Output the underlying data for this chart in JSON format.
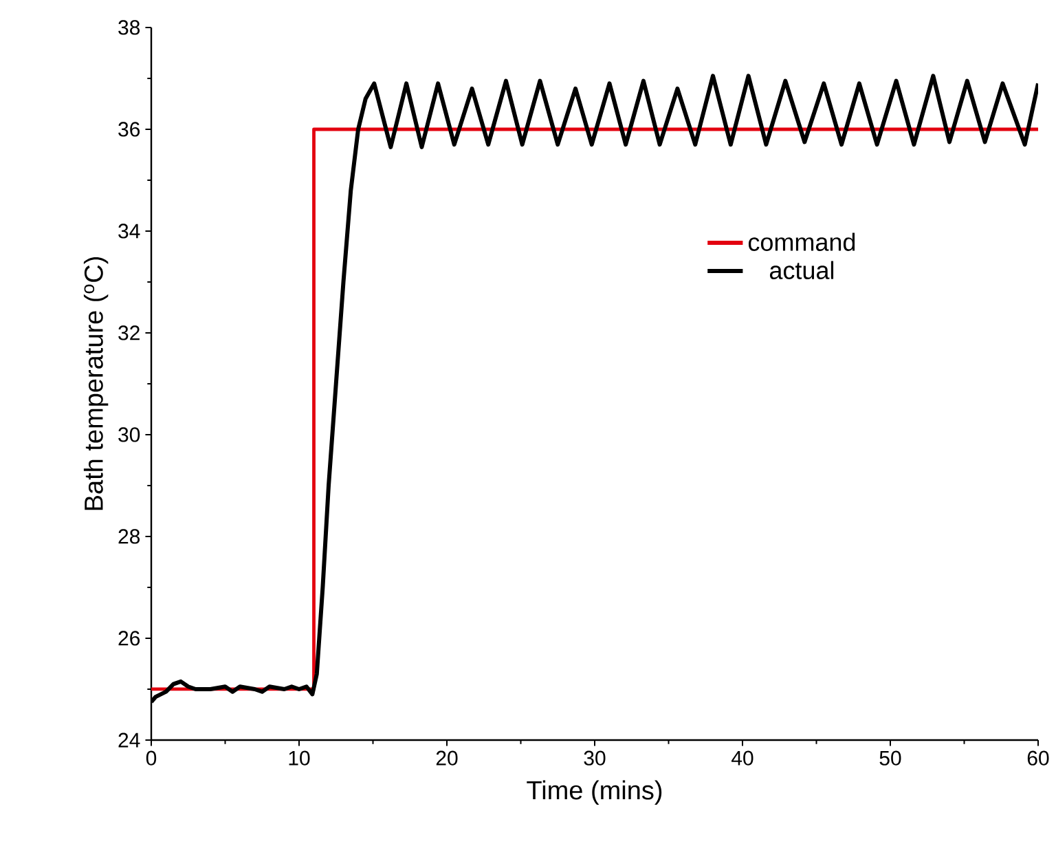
{
  "chart_data": {
    "type": "line",
    "xlabel": "Time (mins)",
    "ylabel": "Bath temperature ($^{o}$C)",
    "xlim": [
      0,
      60
    ],
    "ylim": [
      24,
      38
    ],
    "xticks": [
      0,
      10,
      20,
      30,
      40,
      50,
      60
    ],
    "yticks": [
      24,
      26,
      28,
      30,
      32,
      34,
      36,
      38
    ],
    "grid": false,
    "legend": "right",
    "marker": "none",
    "line_style": "solid",
    "series": [
      {
        "name": "actual",
        "color": "#000000",
        "x": [
          0,
          0.3,
          1,
          1.5,
          2,
          2.5,
          3,
          4,
          5,
          5.5,
          6,
          7,
          7.5,
          8,
          9,
          9.5,
          10,
          10.5,
          10.9,
          11.2,
          11.6,
          12,
          12.5,
          13,
          13.5,
          14,
          14.5,
          15.08,
          16.2,
          17.26,
          18.3,
          19.4,
          20.5,
          21.7,
          22.8,
          24.0,
          25.1,
          26.3,
          27.5,
          28.7,
          29.8,
          31.0,
          32.1,
          33.3,
          34.4,
          35.6,
          36.8,
          38.0,
          39.2,
          40.4,
          41.6,
          42.9,
          44.2,
          45.5,
          46.7,
          47.9,
          49.1,
          50.4,
          51.6,
          52.9,
          54.0,
          55.2,
          56.4,
          57.6,
          59.1,
          60
        ],
        "values": [
          24.75,
          24.85,
          24.95,
          25.1,
          25.15,
          25.05,
          25.0,
          25.0,
          25.05,
          24.95,
          25.05,
          25.0,
          24.95,
          25.05,
          25.0,
          25.05,
          25.0,
          25.05,
          24.9,
          25.3,
          27.0,
          29.0,
          31.0,
          33.0,
          34.8,
          36.0,
          36.6,
          36.9,
          35.65,
          36.9,
          35.65,
          36.9,
          35.7,
          36.8,
          35.7,
          36.95,
          35.7,
          36.95,
          35.7,
          36.8,
          35.7,
          36.9,
          35.7,
          36.95,
          35.7,
          36.8,
          35.7,
          37.05,
          35.7,
          37.05,
          35.7,
          36.95,
          35.75,
          36.9,
          35.7,
          36.9,
          35.7,
          36.95,
          35.7,
          37.05,
          35.75,
          36.95,
          35.75,
          36.9,
          35.7,
          36.9
        ]
      },
      {
        "name": "command",
        "color": "#e3000f",
        "type": "step",
        "x": [
          0,
          11,
          60
        ],
        "values": [
          25,
          36,
          36
        ]
      }
    ]
  }
}
